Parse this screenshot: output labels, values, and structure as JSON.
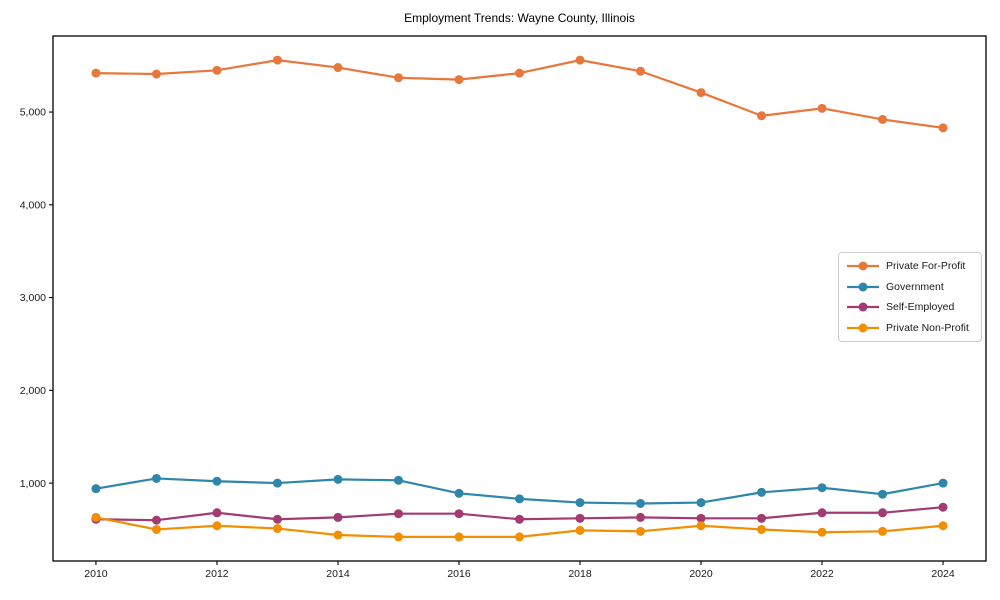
{
  "figure": {
    "background": "#ffffff",
    "spine_color": "#000000",
    "tick_label_color": "#1a1a1a"
  },
  "chart_data": {
    "type": "line",
    "title": "Employment Trends: Wayne County, Illinois",
    "xlabel": "",
    "ylabel": "",
    "grid": false,
    "marker": "circle",
    "legend_position": "right-middle",
    "x": [
      2010,
      2011,
      2012,
      2013,
      2014,
      2015,
      2016,
      2017,
      2018,
      2019,
      2020,
      2021,
      2022,
      2023,
      2024
    ],
    "series": [
      {
        "name": "Private For-Profit",
        "color": "#E8773C",
        "values": [
          5420,
          5410,
          5450,
          5560,
          5480,
          5370,
          5350,
          5420,
          5560,
          5440,
          5210,
          4960,
          5040,
          4920,
          4830
        ]
      },
      {
        "name": "Government",
        "color": "#2E86AB",
        "values": [
          940,
          1050,
          1020,
          1000,
          1040,
          1030,
          890,
          830,
          790,
          780,
          790,
          900,
          950,
          880,
          1000
        ]
      },
      {
        "name": "Self-Employed",
        "color": "#A23B72",
        "values": [
          610,
          600,
          680,
          610,
          630,
          670,
          670,
          610,
          620,
          630,
          620,
          620,
          680,
          680,
          740
        ]
      },
      {
        "name": "Private Non-Profit",
        "color": "#F18F01",
        "values": [
          630,
          500,
          540,
          510,
          440,
          420,
          420,
          420,
          490,
          480,
          540,
          500,
          470,
          480,
          540
        ]
      }
    ],
    "xticks": [
      2010,
      2012,
      2014,
      2016,
      2018,
      2020,
      2022,
      2024
    ],
    "xtick_labels": [
      "2010",
      "2012",
      "2014",
      "2016",
      "2018",
      "2020",
      "2022",
      "2024"
    ],
    "yticks": [
      1000,
      2000,
      3000,
      4000,
      5000
    ],
    "ytick_labels": [
      "1,000",
      "2,000",
      "3,000",
      "4,000",
      "5,000"
    ],
    "xlim": [
      2009.29,
      2024.71
    ],
    "ylim": [
      160,
      5820
    ]
  }
}
